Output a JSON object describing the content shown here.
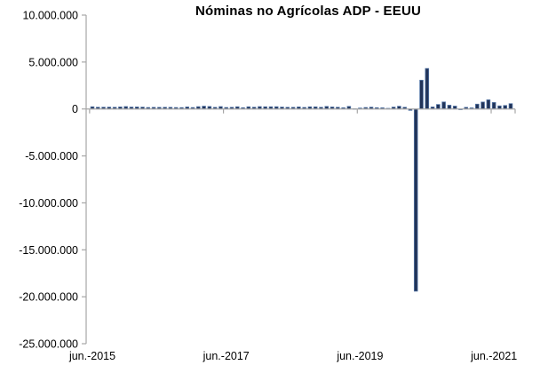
{
  "chart_data": {
    "type": "bar",
    "title": "Nóminas no Agrícolas ADP - EEUU",
    "xlabel": "",
    "ylabel": "",
    "ylim": [
      -25000000,
      10000000
    ],
    "ytick_step": 5000000,
    "grid": false,
    "legend": "none",
    "bar_fill_color": "#213358",
    "bar_edge_color": "#5577A8",
    "axis_color": "#A6A6A6",
    "ytick_labels": [
      "10.000.000",
      "5.000.000",
      "0",
      "-5.000.000",
      "-10.000.000",
      "-15.000.000",
      "-20.000.000",
      "-25.000.000"
    ],
    "ytick_values": [
      10000000,
      5000000,
      0,
      -5000000,
      -10000000,
      -15000000,
      -20000000,
      -25000000
    ],
    "xtick_labels": [
      "jun.-2015",
      "jun.-2017",
      "jun.-2019",
      "jun.-2021"
    ],
    "xtick_indices": [
      0,
      24,
      48,
      72
    ],
    "x": [
      "jun-2015",
      "jul-2015",
      "ago-2015",
      "sep-2015",
      "oct-2015",
      "nov-2015",
      "dic-2015",
      "ene-2016",
      "feb-2016",
      "mar-2016",
      "abr-2016",
      "may-2016",
      "jun-2016",
      "jul-2016",
      "ago-2016",
      "sep-2016",
      "oct-2016",
      "nov-2016",
      "dic-2016",
      "ene-2017",
      "feb-2017",
      "mar-2017",
      "abr-2017",
      "may-2017",
      "jun-2017",
      "jul-2017",
      "ago-2017",
      "sep-2017",
      "oct-2017",
      "nov-2017",
      "dic-2017",
      "ene-2018",
      "feb-2018",
      "mar-2018",
      "abr-2018",
      "may-2018",
      "jun-2018",
      "jul-2018",
      "ago-2018",
      "sep-2018",
      "oct-2018",
      "nov-2018",
      "dic-2018",
      "ene-2019",
      "feb-2019",
      "mar-2019",
      "abr-2019",
      "may-2019",
      "jun-2019",
      "jul-2019",
      "ago-2019",
      "sep-2019",
      "oct-2019",
      "nov-2019",
      "dic-2019",
      "ene-2020",
      "feb-2020",
      "mar-2020",
      "abr-2020",
      "may-2020",
      "jun-2020",
      "jul-2020",
      "ago-2020",
      "sep-2020",
      "oct-2020",
      "nov-2020",
      "dic-2020",
      "ene-2021",
      "feb-2021",
      "mar-2021",
      "abr-2021",
      "may-2021",
      "jun-2021",
      "jul-2021",
      "ago-2021",
      "sep-2021"
    ],
    "series": [
      {
        "name": "Nóminas no Agrícolas ADP",
        "values": [
          237000,
          185000,
          190000,
          200000,
          182000,
          217000,
          257000,
          205000,
          214000,
          200000,
          156000,
          173000,
          172000,
          179000,
          175000,
          154000,
          147000,
          216000,
          153000,
          246000,
          298000,
          263000,
          174000,
          253000,
          158000,
          178000,
          237000,
          135000,
          235000,
          190000,
          250000,
          234000,
          235000,
          241000,
          204000,
          178000,
          177000,
          219000,
          163000,
          230000,
          227000,
          179000,
          271000,
          213000,
          183000,
          129000,
          275000,
          27000,
          102000,
          156000,
          195000,
          135000,
          125000,
          67000,
          202000,
          291000,
          183000,
          -149000,
          -19409000,
          3065000,
          4314000,
          216000,
          481000,
          749000,
          404000,
          307000,
          -78000,
          174000,
          117000,
          517000,
          742000,
          978000,
          692000,
          330000,
          374000,
          568000
        ]
      }
    ]
  }
}
